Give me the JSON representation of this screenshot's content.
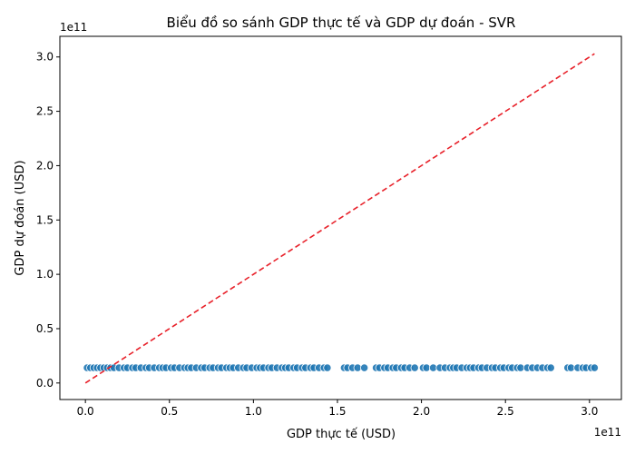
{
  "chart_data": {
    "type": "scatter",
    "title": "Biểu đồ so sánh GDP thực tế và GDP dự đoán - SVR",
    "xlabel": "GDP thực tế (USD)",
    "ylabel": "GDP dự đoán (USD)",
    "x_offset_label": "1e11",
    "y_offset_label": "1e11",
    "xlim": [
      -0.152,
      3.19
    ],
    "ylim": [
      -0.152,
      3.19
    ],
    "x_ticks": [
      {
        "value": 0.0,
        "label": "0.0"
      },
      {
        "value": 0.5,
        "label": "0.5"
      },
      {
        "value": 1.0,
        "label": "1.0"
      },
      {
        "value": 1.5,
        "label": "1.5"
      },
      {
        "value": 2.0,
        "label": "2.0"
      },
      {
        "value": 2.5,
        "label": "2.5"
      },
      {
        "value": 3.0,
        "label": "3.0"
      }
    ],
    "y_ticks": [
      {
        "value": 0.0,
        "label": "0.0"
      },
      {
        "value": 0.5,
        "label": "0.5"
      },
      {
        "value": 1.0,
        "label": "1.0"
      },
      {
        "value": 1.5,
        "label": "1.5"
      },
      {
        "value": 2.0,
        "label": "2.0"
      },
      {
        "value": 2.5,
        "label": "2.5"
      },
      {
        "value": 3.0,
        "label": "3.0"
      }
    ],
    "reference_line": {
      "style": "dashed",
      "color": "#e8212a",
      "from": [
        0.0,
        0.0
      ],
      "to": [
        3.03,
        3.03
      ]
    },
    "point_color": "#1f77b4",
    "series": [
      {
        "marker": "circle",
        "x": [
          0.01,
          0.03,
          0.05,
          0.07,
          0.09,
          0.11,
          0.13,
          0.15,
          0.17,
          0.2,
          0.23,
          0.25,
          0.28,
          0.3,
          0.33,
          0.36,
          0.38,
          0.41,
          0.44,
          0.46,
          0.48,
          0.51,
          0.53,
          0.56,
          0.59,
          0.61,
          0.63,
          0.66,
          0.69,
          0.71,
          0.74,
          0.76,
          0.79,
          0.81,
          0.84,
          0.86,
          0.88,
          0.91,
          0.94,
          0.96,
          0.99,
          1.02,
          1.04,
          1.06,
          1.09,
          1.11,
          1.14,
          1.17,
          1.19,
          1.21,
          1.24,
          1.26,
          1.29,
          1.31,
          1.34,
          1.36,
          1.39,
          1.42,
          1.44,
          1.54,
          1.56,
          1.59,
          1.62,
          1.66,
          1.73,
          1.75,
          1.78,
          1.8,
          1.83,
          1.85,
          1.88,
          1.9,
          1.93,
          1.96,
          2.01,
          2.03,
          2.07,
          2.11,
          2.14,
          2.17,
          2.19,
          2.21,
          2.24,
          2.27,
          2.29,
          2.31,
          2.34,
          2.36,
          2.39,
          2.42,
          2.44,
          2.47,
          2.49,
          2.52,
          2.54,
          2.57,
          2.59,
          2.63,
          2.66,
          2.69,
          2.72,
          2.75,
          2.77,
          2.87,
          2.89,
          2.93,
          2.96,
          2.98,
          3.01,
          3.03
        ],
        "y": [
          0.14,
          0.14,
          0.14,
          0.14,
          0.14,
          0.14,
          0.14,
          0.14,
          0.14,
          0.14,
          0.14,
          0.14,
          0.14,
          0.14,
          0.14,
          0.14,
          0.14,
          0.14,
          0.14,
          0.14,
          0.14,
          0.14,
          0.14,
          0.14,
          0.14,
          0.14,
          0.14,
          0.14,
          0.14,
          0.14,
          0.14,
          0.14,
          0.14,
          0.14,
          0.14,
          0.14,
          0.14,
          0.14,
          0.14,
          0.14,
          0.14,
          0.14,
          0.14,
          0.14,
          0.14,
          0.14,
          0.14,
          0.14,
          0.14,
          0.14,
          0.14,
          0.14,
          0.14,
          0.14,
          0.14,
          0.14,
          0.14,
          0.14,
          0.14,
          0.14,
          0.14,
          0.14,
          0.14,
          0.14,
          0.14,
          0.14,
          0.14,
          0.14,
          0.14,
          0.14,
          0.14,
          0.14,
          0.14,
          0.14,
          0.14,
          0.14,
          0.14,
          0.14,
          0.14,
          0.14,
          0.14,
          0.14,
          0.14,
          0.14,
          0.14,
          0.14,
          0.14,
          0.14,
          0.14,
          0.14,
          0.14,
          0.14,
          0.14,
          0.14,
          0.14,
          0.14,
          0.14,
          0.14,
          0.14,
          0.14,
          0.14,
          0.14,
          0.14,
          0.14,
          0.14,
          0.14,
          0.14,
          0.14,
          0.14,
          0.14
        ]
      }
    ]
  }
}
